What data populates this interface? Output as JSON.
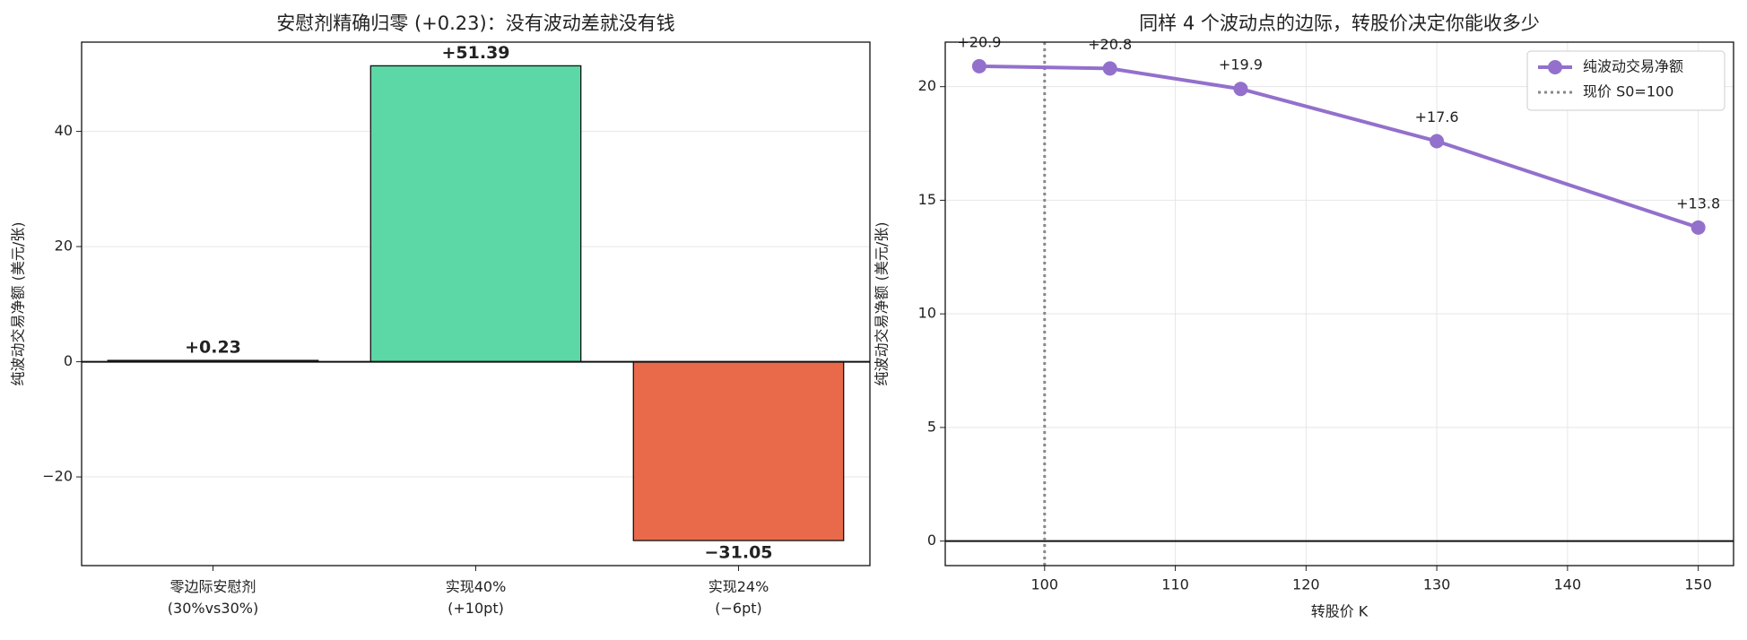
{
  "chart_data": [
    {
      "type": "bar",
      "title": "安慰剂精确归零 (+0.23)：没有波动差就没有钱",
      "ylabel": "纯波动交易净额 (美元/张)",
      "categories": [
        "零边际安慰剂\n(30%vs30%)",
        "实现40%\n(+10pt)",
        "实现24%\n(−6pt)"
      ],
      "values": [
        0.23,
        51.39,
        -31.05
      ],
      "value_labels": [
        "+0.23",
        "+51.39",
        "−31.05"
      ],
      "colors": [
        "#5a5a5a",
        "#5cd8a6",
        "#e86a4b"
      ],
      "ylim": [
        -35.4,
        55.5
      ],
      "yticks": [
        {
          "value": -20,
          "label": "−20"
        },
        0,
        20,
        40
      ],
      "grid": "y"
    },
    {
      "type": "line",
      "title": "同样 4 个波动点的边际，转股价决定你能收多少",
      "xlabel": "转股价 K",
      "ylabel": "纯波动交易净额 (美元/张)",
      "x": [
        95,
        105,
        115,
        130,
        150
      ],
      "series": [
        {
          "name": "纯波动交易净额",
          "color": "#9370cc",
          "values": [
            20.9,
            20.8,
            19.9,
            17.6,
            13.8
          ],
          "value_labels": [
            "+20.9",
            "+20.8",
            "+19.9",
            "+17.6",
            "+13.8"
          ]
        }
      ],
      "reference_line": {
        "x": 100,
        "name": "现价 S0=100",
        "color": "#888888"
      },
      "xlim": [
        92.4,
        152.7
      ],
      "xticks": [
        100,
        110,
        120,
        130,
        140,
        150
      ],
      "ylim": [
        -1.08,
        21.96
      ],
      "yticks": [
        0,
        5,
        10,
        15,
        20
      ],
      "grid": "both",
      "legend": "upper right"
    }
  ]
}
